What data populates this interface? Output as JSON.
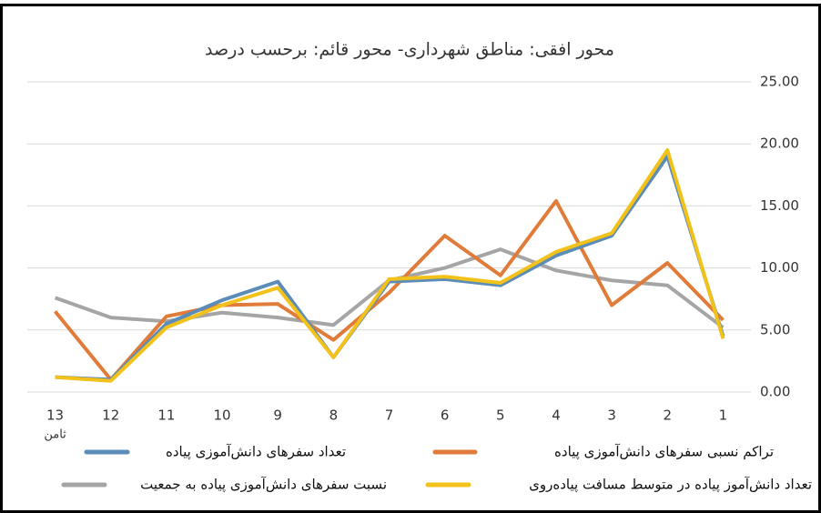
{
  "chart_data": {
    "type": "line",
    "title": "محور افقی: مناطق شهرداری- محور قائم: برحسب درصد",
    "categories": [
      "13",
      "12",
      "11",
      "10",
      "9",
      "8",
      "7",
      "6",
      "5",
      "4",
      "3",
      "2",
      "1"
    ],
    "annotations": [
      "ثامن"
    ],
    "ylim": [
      0,
      25
    ],
    "yticks": [
      {
        "value": 0,
        "label": "0.00"
      },
      {
        "value": 5,
        "label": "5.00"
      },
      {
        "value": 10,
        "label": "10.00"
      },
      {
        "value": 15,
        "label": "15.00"
      },
      {
        "value": 20,
        "label": "20.00"
      },
      {
        "value": 25,
        "label": "25.00"
      }
    ],
    "grid": true,
    "series": [
      {
        "name": "تعداد سفرهای دانش‌آموزی پیاده",
        "color": "#5b8db8",
        "values": [
          1.2,
          1.0,
          5.5,
          7.4,
          8.9,
          2.8,
          8.9,
          9.1,
          8.6,
          11.0,
          12.6,
          19.0,
          4.5
        ]
      },
      {
        "name": "تراکم نسبی سفرهای دانش‌آموزی پیاده",
        "color": "#e07b39",
        "values": [
          6.5,
          1.0,
          6.1,
          7.0,
          7.1,
          4.2,
          8.0,
          12.6,
          9.4,
          15.4,
          7.0,
          10.4,
          5.8
        ]
      },
      {
        "name": "نسبت سفرهای دانش‌آموزی پیاده به جمعیت",
        "color": "#a5a5a5",
        "values": [
          7.6,
          6.0,
          5.7,
          6.4,
          6.0,
          5.4,
          9.0,
          10.0,
          11.5,
          9.8,
          9.0,
          8.6,
          5.2
        ]
      },
      {
        "name": "تعداد دانش‌آموز پیاده در متوسط مسافت پیاده‌روی",
        "color": "#f2c21b",
        "values": [
          1.2,
          0.9,
          5.2,
          7.0,
          8.4,
          2.8,
          9.1,
          9.3,
          8.8,
          11.3,
          12.8,
          19.5,
          4.3
        ]
      }
    ]
  }
}
